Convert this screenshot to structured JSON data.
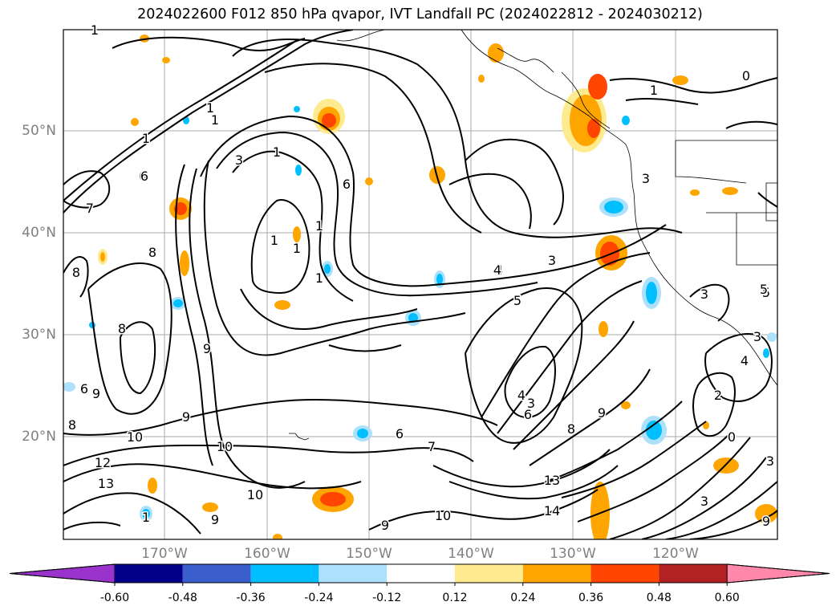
{
  "title": "2024022600 F012 850 hPa qvapor, IVT Landfall PC (2024022812 - 2024030212)",
  "map": {
    "lat_ticks": [
      "50°N",
      "40°N",
      "30°N",
      "20°N"
    ],
    "lon_ticks": [
      "170°W",
      "160°W",
      "150°W",
      "140°W",
      "130°W",
      "120°W"
    ],
    "contour_labels": [
      "1",
      "1",
      "1",
      "1",
      "1",
      "3",
      "6",
      "1",
      "1",
      "1",
      "1",
      "6",
      "6",
      "5",
      "4",
      "7",
      "8",
      "8",
      "8",
      "9",
      "9",
      "10",
      "10",
      "12",
      "13",
      "1",
      "9",
      "6",
      "7",
      "10",
      "9",
      "10",
      "13",
      "14",
      "8",
      "6",
      "9",
      "4",
      "3",
      "5",
      "3",
      "4",
      "3",
      "1",
      "0",
      "3",
      "3",
      "5",
      "3",
      "2",
      "0",
      "3",
      "9",
      "4",
      "8",
      "9",
      "6"
    ],
    "shading_colors": [
      "#FFEB8F",
      "#FFA500",
      "#FF4500",
      "#00BFFF",
      "#ADE0FA"
    ]
  },
  "colorbar": {
    "labels": [
      "-0.60",
      "-0.48",
      "-0.36",
      "-0.24",
      "-0.12",
      "0.12",
      "0.24",
      "0.36",
      "0.48",
      "0.60"
    ],
    "colors": [
      "#9933CC",
      "#00008B",
      "#3A5FCD",
      "#00BFFF",
      "#ADE0FA",
      "#FFFFFF",
      "#FFEB8F",
      "#FFA500",
      "#FF4500",
      "#B22222",
      "#FF88AA"
    ]
  }
}
